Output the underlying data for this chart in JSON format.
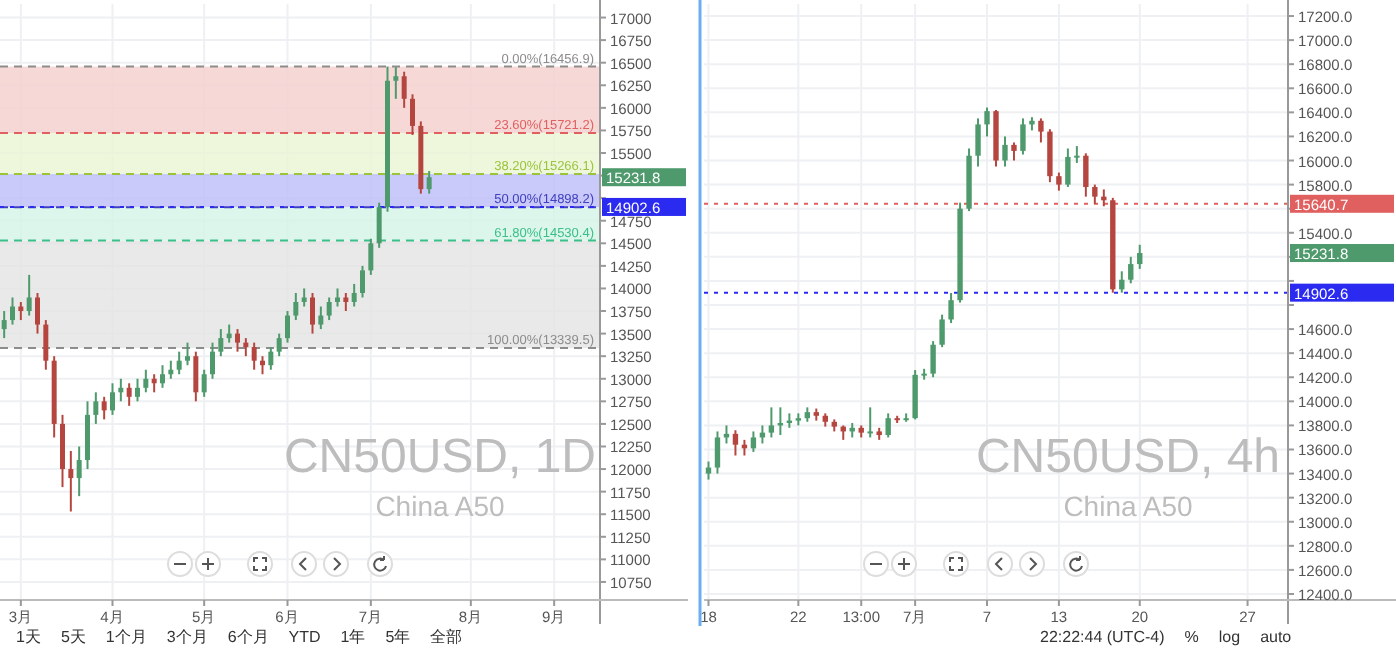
{
  "chart_data": [
    {
      "type": "candlestick",
      "title": "CN50USD, 1D",
      "subtitle": "China A50",
      "categories": [
        null,
        null,
        "3月",
        null,
        null,
        null,
        null,
        null,
        null,
        null,
        null,
        null,
        null,
        "4月",
        null,
        null,
        null,
        null,
        null,
        null,
        null,
        null,
        null,
        null,
        "5月",
        null,
        null,
        null,
        null,
        null,
        null,
        null,
        null,
        null,
        "6月",
        null,
        null,
        null,
        null,
        null,
        null,
        null,
        null,
        null,
        "7月",
        null,
        null,
        null,
        null,
        null,
        null,
        null,
        null,
        null,
        null,
        null,
        "8月",
        null,
        null,
        null,
        null,
        null,
        null,
        null,
        null,
        null,
        "9月",
        null,
        null,
        null,
        null,
        null
      ],
      "ohlc": [
        [
          13550,
          13750,
          13450,
          13650
        ],
        [
          13650,
          13900,
          13600,
          13800
        ],
        [
          13800,
          13850,
          13650,
          13750
        ],
        [
          13750,
          14150,
          13700,
          13900
        ],
        [
          13900,
          13950,
          13500,
          13600
        ],
        [
          13600,
          13650,
          13100,
          13200
        ],
        [
          13200,
          13250,
          12350,
          12500
        ],
        [
          12500,
          12600,
          11800,
          12000
        ],
        [
          12000,
          12200,
          11530,
          11900
        ],
        [
          11900,
          12250,
          11700,
          12100
        ],
        [
          12100,
          12750,
          12000,
          12600
        ],
        [
          12600,
          12850,
          12500,
          12750
        ],
        [
          12750,
          12800,
          12550,
          12650
        ],
        [
          12650,
          12950,
          12600,
          12850
        ],
        [
          12850,
          13000,
          12750,
          12900
        ],
        [
          12900,
          12950,
          12700,
          12800
        ],
        [
          12800,
          13000,
          12750,
          12900
        ],
        [
          12900,
          13100,
          12850,
          13000
        ],
        [
          13000,
          13050,
          12850,
          12950
        ],
        [
          12950,
          13150,
          12900,
          13050
        ],
        [
          13050,
          13200,
          13000,
          13100
        ],
        [
          13100,
          13300,
          13050,
          13200
        ],
        [
          13200,
          13400,
          13150,
          13250
        ],
        [
          13250,
          13300,
          12750,
          12850
        ],
        [
          12850,
          13100,
          12800,
          13050
        ],
        [
          13050,
          13400,
          13000,
          13300
        ],
        [
          13300,
          13550,
          13250,
          13450
        ],
        [
          13450,
          13600,
          13400,
          13500
        ],
        [
          13500,
          13550,
          13300,
          13400
        ],
        [
          13400,
          13450,
          13250,
          13350
        ],
        [
          13350,
          13400,
          13100,
          13200
        ],
        [
          13200,
          13250,
          13050,
          13150
        ],
        [
          13150,
          13350,
          13100,
          13300
        ],
        [
          13300,
          13500,
          13250,
          13450
        ],
        [
          13450,
          13750,
          13400,
          13700
        ],
        [
          13700,
          13950,
          13650,
          13850
        ],
        [
          13850,
          14000,
          13800,
          13900
        ],
        [
          13900,
          13950,
          13500,
          13600
        ],
        [
          13600,
          13800,
          13550,
          13700
        ],
        [
          13700,
          13900,
          13650,
          13850
        ],
        [
          13850,
          14000,
          13800,
          13900
        ],
        [
          13900,
          13950,
          13750,
          13850
        ],
        [
          13850,
          14050,
          13800,
          13950
        ],
        [
          13950,
          14250,
          13900,
          14200
        ],
        [
          14200,
          14550,
          14150,
          14500
        ],
        [
          14500,
          14950,
          14450,
          14900
        ],
        [
          14900,
          16456.9,
          14850,
          16300
        ],
        [
          16300,
          16450,
          16100,
          16350
        ],
        [
          16350,
          16400,
          16000,
          16100
        ],
        [
          16100,
          16150,
          15700,
          15800
        ],
        [
          15800,
          15850,
          15050,
          15100
        ],
        [
          15100,
          15300,
          15050,
          15231.8
        ],
        null,
        null,
        null,
        null,
        null,
        null,
        null,
        null,
        null,
        null,
        null,
        null,
        null,
        null,
        null,
        null,
        null,
        null,
        null,
        null
      ],
      "colors": [
        "#4e9a6c",
        "#4e9a6c",
        "#b5463f",
        "#4e9a6c",
        "#b5463f",
        "#b5463f",
        "#b5463f",
        "#b5463f",
        "#b5463f",
        "#4e9a6c",
        "#4e9a6c",
        "#4e9a6c",
        "#b5463f",
        "#4e9a6c",
        "#4e9a6c",
        "#b5463f",
        "#4e9a6c",
        "#4e9a6c",
        "#b5463f",
        "#4e9a6c",
        "#4e9a6c",
        "#4e9a6c",
        "#4e9a6c",
        "#b5463f",
        "#4e9a6c",
        "#4e9a6c",
        "#4e9a6c",
        "#4e9a6c",
        "#b5463f",
        "#b5463f",
        "#b5463f",
        "#b5463f",
        "#4e9a6c",
        "#4e9a6c",
        "#4e9a6c",
        "#4e9a6c",
        "#4e9a6c",
        "#b5463f",
        "#4e9a6c",
        "#4e9a6c",
        "#4e9a6c",
        "#b5463f",
        "#4e9a6c",
        "#4e9a6c",
        "#4e9a6c",
        "#4e9a6c",
        "#4e9a6c",
        "#4e9a6c",
        "#b5463f",
        "#b5463f",
        "#b5463f",
        "#4e9a6c",
        null,
        null,
        null,
        null,
        null,
        null,
        null,
        null,
        null,
        null,
        null,
        null,
        null,
        null,
        null,
        null,
        null,
        null,
        null,
        null
      ],
      "ylim": [
        10550,
        17150
      ],
      "yticks": [
        10750,
        11000,
        11250,
        11500,
        11750,
        12000,
        12250,
        12500,
        12750,
        13000,
        13250,
        13500,
        13750,
        14000,
        14250,
        14500,
        14750,
        {
          "value": 15000,
          "label": null
        },
        {
          "value": 15250,
          "label": null
        },
        15500,
        15750,
        16000,
        16250,
        16500,
        16750,
        17000
      ],
      "grid": true,
      "bands": [
        {
          "axis": "y",
          "from": 16456.9,
          "to": 15721.2,
          "color": "#f4cfcd"
        },
        {
          "axis": "y",
          "from": 15721.2,
          "to": 15266.1,
          "color": "#eaf5d3"
        },
        {
          "axis": "y",
          "from": 15266.1,
          "to": 14898.2,
          "color": "#bcbdf7"
        },
        {
          "axis": "y",
          "from": 14898.2,
          "to": 14530.4,
          "color": "#d3f4e6"
        },
        {
          "axis": "y",
          "from": 14530.4,
          "to": 13339.5,
          "color": "#e4e4e4"
        }
      ],
      "ref_lines": [
        {
          "axis": "y",
          "value": 16456.9,
          "label": "0.00%(16456.9)",
          "color": "#8c8c8c",
          "line_style": "dashed"
        },
        {
          "axis": "y",
          "value": 15721.2,
          "label": "23.60%(15721.2)",
          "color": "#e06060",
          "line_style": "dashed"
        },
        {
          "axis": "y",
          "value": 15266.1,
          "label": "38.20%(15266.1)",
          "color": "#9ac43a",
          "line_style": "dashed"
        },
        {
          "axis": "y",
          "value": 14898.2,
          "label": "50.00%(14898.2)",
          "color": "#4040c0",
          "line_style": "dashed"
        },
        {
          "axis": "y",
          "value": 14530.4,
          "label": "61.80%(14530.4)",
          "color": "#3cc08a",
          "line_style": "dashed"
        },
        {
          "axis": "y",
          "value": 13339.5,
          "label": "100.00%(13339.5)",
          "color": "#8c8c8c",
          "line_style": "dashed"
        },
        {
          "axis": "y",
          "value": 14902.6,
          "label": "14902.6",
          "color": "#2a2af0",
          "line_style": "dotted"
        }
      ],
      "annotations": [
        "15231.8",
        "1天",
        "5天",
        "1个月",
        "3个月",
        "6个月",
        "YTD",
        "1年",
        "5年",
        "全部"
      ]
    },
    {
      "type": "candlestick",
      "title": "CN50USD, 4h",
      "subtitle": "China A50",
      "categories": [
        "18",
        null,
        null,
        null,
        null,
        null,
        null,
        null,
        null,
        null,
        "22",
        null,
        null,
        null,
        null,
        null,
        null,
        "13:00",
        null,
        null,
        null,
        null,
        null,
        "7月",
        null,
        null,
        null,
        null,
        null,
        null,
        null,
        "7",
        null,
        null,
        null,
        null,
        null,
        null,
        null,
        "13",
        null,
        null,
        null,
        null,
        null,
        null,
        null,
        null,
        "20",
        null,
        null,
        null,
        null,
        null,
        null,
        null,
        null,
        null,
        null,
        null,
        "27",
        null,
        null,
        null,
        null
      ],
      "ohlc": [
        [
          13400,
          13500,
          13350,
          13450
        ],
        [
          13450,
          13750,
          13400,
          13700
        ],
        [
          13700,
          13800,
          13650,
          13730
        ],
        [
          13730,
          13760,
          13550,
          13640
        ],
        [
          13640,
          13680,
          13550,
          13610
        ],
        [
          13610,
          13750,
          13580,
          13700
        ],
        [
          13700,
          13800,
          13650,
          13740
        ],
        [
          13740,
          13950,
          13700,
          13800
        ],
        [
          13800,
          13950,
          13720,
          13820
        ],
        [
          13820,
          13900,
          13780,
          13840
        ],
        [
          13840,
          13900,
          13800,
          13860
        ],
        [
          13860,
          13950,
          13830,
          13910
        ],
        [
          13910,
          13940,
          13840,
          13880
        ],
        [
          13880,
          13900,
          13790,
          13830
        ],
        [
          13830,
          13850,
          13750,
          13790
        ],
        [
          13790,
          13800,
          13680,
          13750
        ],
        [
          13750,
          13820,
          13700,
          13780
        ],
        [
          13780,
          13800,
          13700,
          13740
        ],
        [
          13740,
          13950,
          13700,
          13750
        ],
        [
          13750,
          13780,
          13680,
          13720
        ],
        [
          13720,
          13900,
          13700,
          13860
        ],
        [
          13860,
          13880,
          13820,
          13850
        ],
        [
          13850,
          13900,
          13830,
          13860
        ],
        [
          13860,
          14260,
          13850,
          14220
        ],
        [
          14220,
          14270,
          14180,
          14230
        ],
        [
          14230,
          14500,
          14200,
          14470
        ],
        [
          14470,
          14720,
          14450,
          14680
        ],
        [
          14680,
          14900,
          14650,
          14840
        ],
        [
          14840,
          15650,
          14820,
          15600
        ],
        [
          15600,
          16100,
          15580,
          16040
        ],
        [
          16040,
          16350,
          15950,
          16300
        ],
        [
          16300,
          16440,
          16200,
          16410
        ],
        [
          16410,
          16420,
          15950,
          16000
        ],
        [
          16000,
          16200,
          15950,
          16130
        ],
        [
          16130,
          16150,
          16000,
          16080
        ],
        [
          16080,
          16350,
          16050,
          16300
        ],
        [
          16300,
          16360,
          16250,
          16330
        ],
        [
          16330,
          16350,
          16150,
          16240
        ],
        [
          16240,
          16260,
          15820,
          15870
        ],
        [
          15870,
          15900,
          15750,
          15800
        ],
        [
          15800,
          16100,
          15780,
          16030
        ],
        [
          16030,
          16120,
          15980,
          16040
        ],
        [
          16040,
          16060,
          15700,
          15780
        ],
        [
          15780,
          15800,
          15640,
          15700
        ],
        [
          15700,
          15760,
          15620,
          15670
        ],
        [
          15670,
          15690,
          14902.6,
          14930
        ],
        [
          14930,
          15080,
          14902.6,
          15010
        ],
        [
          15010,
          15200,
          14980,
          15140
        ],
        [
          15140,
          15300,
          15100,
          15231.8
        ],
        null,
        null,
        null,
        null,
        null,
        null,
        null,
        null,
        null,
        null,
        null,
        null,
        null,
        null,
        null,
        null
      ],
      "colors": [
        "#4e9a6c",
        "#4e9a6c",
        "#4e9a6c",
        "#b5463f",
        "#b5463f",
        "#4e9a6c",
        "#4e9a6c",
        "#4e9a6c",
        "#4e9a6c",
        "#4e9a6c",
        "#4e9a6c",
        "#4e9a6c",
        "#b5463f",
        "#b5463f",
        "#b5463f",
        "#b5463f",
        "#4e9a6c",
        "#b5463f",
        "#4e9a6c",
        "#b5463f",
        "#4e9a6c",
        "#b5463f",
        "#4e9a6c",
        "#4e9a6c",
        "#4e9a6c",
        "#4e9a6c",
        "#4e9a6c",
        "#4e9a6c",
        "#4e9a6c",
        "#4e9a6c",
        "#4e9a6c",
        "#4e9a6c",
        "#b5463f",
        "#4e9a6c",
        "#b5463f",
        "#4e9a6c",
        "#4e9a6c",
        "#b5463f",
        "#b5463f",
        "#b5463f",
        "#4e9a6c",
        "#4e9a6c",
        "#b5463f",
        "#b5463f",
        "#b5463f",
        "#b5463f",
        "#4e9a6c",
        "#4e9a6c",
        "#4e9a6c",
        null,
        null,
        null,
        null,
        null,
        null,
        null,
        null,
        null,
        null,
        null,
        null,
        null,
        null,
        null,
        null
      ],
      "ylim": [
        12350,
        17300
      ],
      "yticks": [
        {
          "value": 12400,
          "label": "12400.0"
        },
        {
          "value": 12600,
          "label": "12600.0"
        },
        {
          "value": 12800,
          "label": "12800.0"
        },
        {
          "value": 13000,
          "label": "13000.0"
        },
        {
          "value": 13200,
          "label": "13200.0"
        },
        {
          "value": 13400,
          "label": "13400.0"
        },
        {
          "value": 13600,
          "label": "13600.0"
        },
        {
          "value": 13800,
          "label": "13800.0"
        },
        {
          "value": 14000,
          "label": "14000.0"
        },
        {
          "value": 14200,
          "label": "14200.0"
        },
        {
          "value": 14400,
          "label": "14400.0"
        },
        {
          "value": 14600,
          "label": "14600.0"
        },
        {
          "value": 14800,
          "label": null
        },
        {
          "value": 15000,
          "label": null
        },
        {
          "value": 15200,
          "label": null
        },
        {
          "value": 15400,
          "label": "15400.0"
        },
        {
          "value": 15600,
          "label": null
        },
        {
          "value": 15800,
          "label": "15800.0"
        },
        {
          "value": 16000,
          "label": "16000.0"
        },
        {
          "value": 16200,
          "label": "16200.0"
        },
        {
          "value": 16400,
          "label": "16400.0"
        },
        {
          "value": 16600,
          "label": "16600.0"
        },
        {
          "value": 16800,
          "label": "16800.0"
        },
        {
          "value": 17000,
          "label": "17000.0"
        },
        {
          "value": 17200,
          "label": "17200.0"
        }
      ],
      "grid": true,
      "ref_lines": [
        {
          "axis": "y",
          "value": 15640.7,
          "label": "15640.7",
          "color": "#e06060",
          "line_style": "dotted"
        },
        {
          "axis": "y",
          "value": 14902.6,
          "label": "14902.6",
          "color": "#2a2af0",
          "line_style": "dotted"
        }
      ],
      "annotations": [
        "15231.8",
        "22:22:44 (UTC-4)",
        "%",
        "log",
        "auto"
      ]
    }
  ]
}
